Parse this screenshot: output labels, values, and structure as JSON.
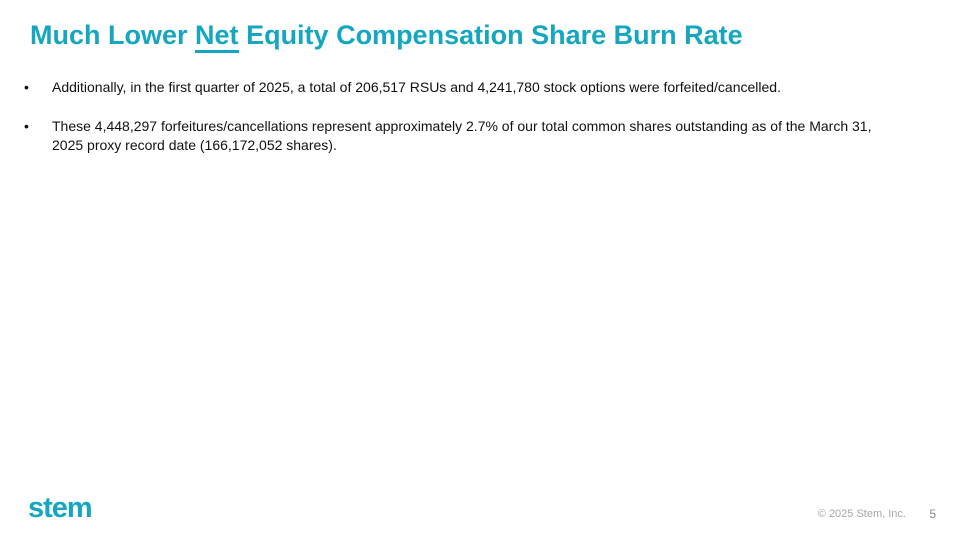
{
  "slide": {
    "title": {
      "part1": "Much Lower",
      "underlined": "Net",
      "part2": "Equity Compensation Share Burn Rate"
    },
    "bullet_marker": "•",
    "bullets": [
      {
        "text": "Additionally, in the first quarter of 2025, a total of 206,517 RSUs and 4,241,780 stock options were forfeited/cancelled."
      },
      {
        "text": "These 4,448,297 forfeitures/cancellations represent approximately 2.7% of our total common shares outstanding as of the March 31, 2025 proxy record date (166,172,052 shares)."
      }
    ],
    "footer": {
      "logo_text": "stem",
      "copyright": "© 2025 Stem, Inc.",
      "page_number": "5"
    }
  },
  "colors": {
    "accent_teal": "#14A7BF",
    "body_text": "#111111",
    "copyright_gray": "#A6A6A6",
    "page_number_gray": "#8C8C8C",
    "background": "#FFFFFF"
  }
}
